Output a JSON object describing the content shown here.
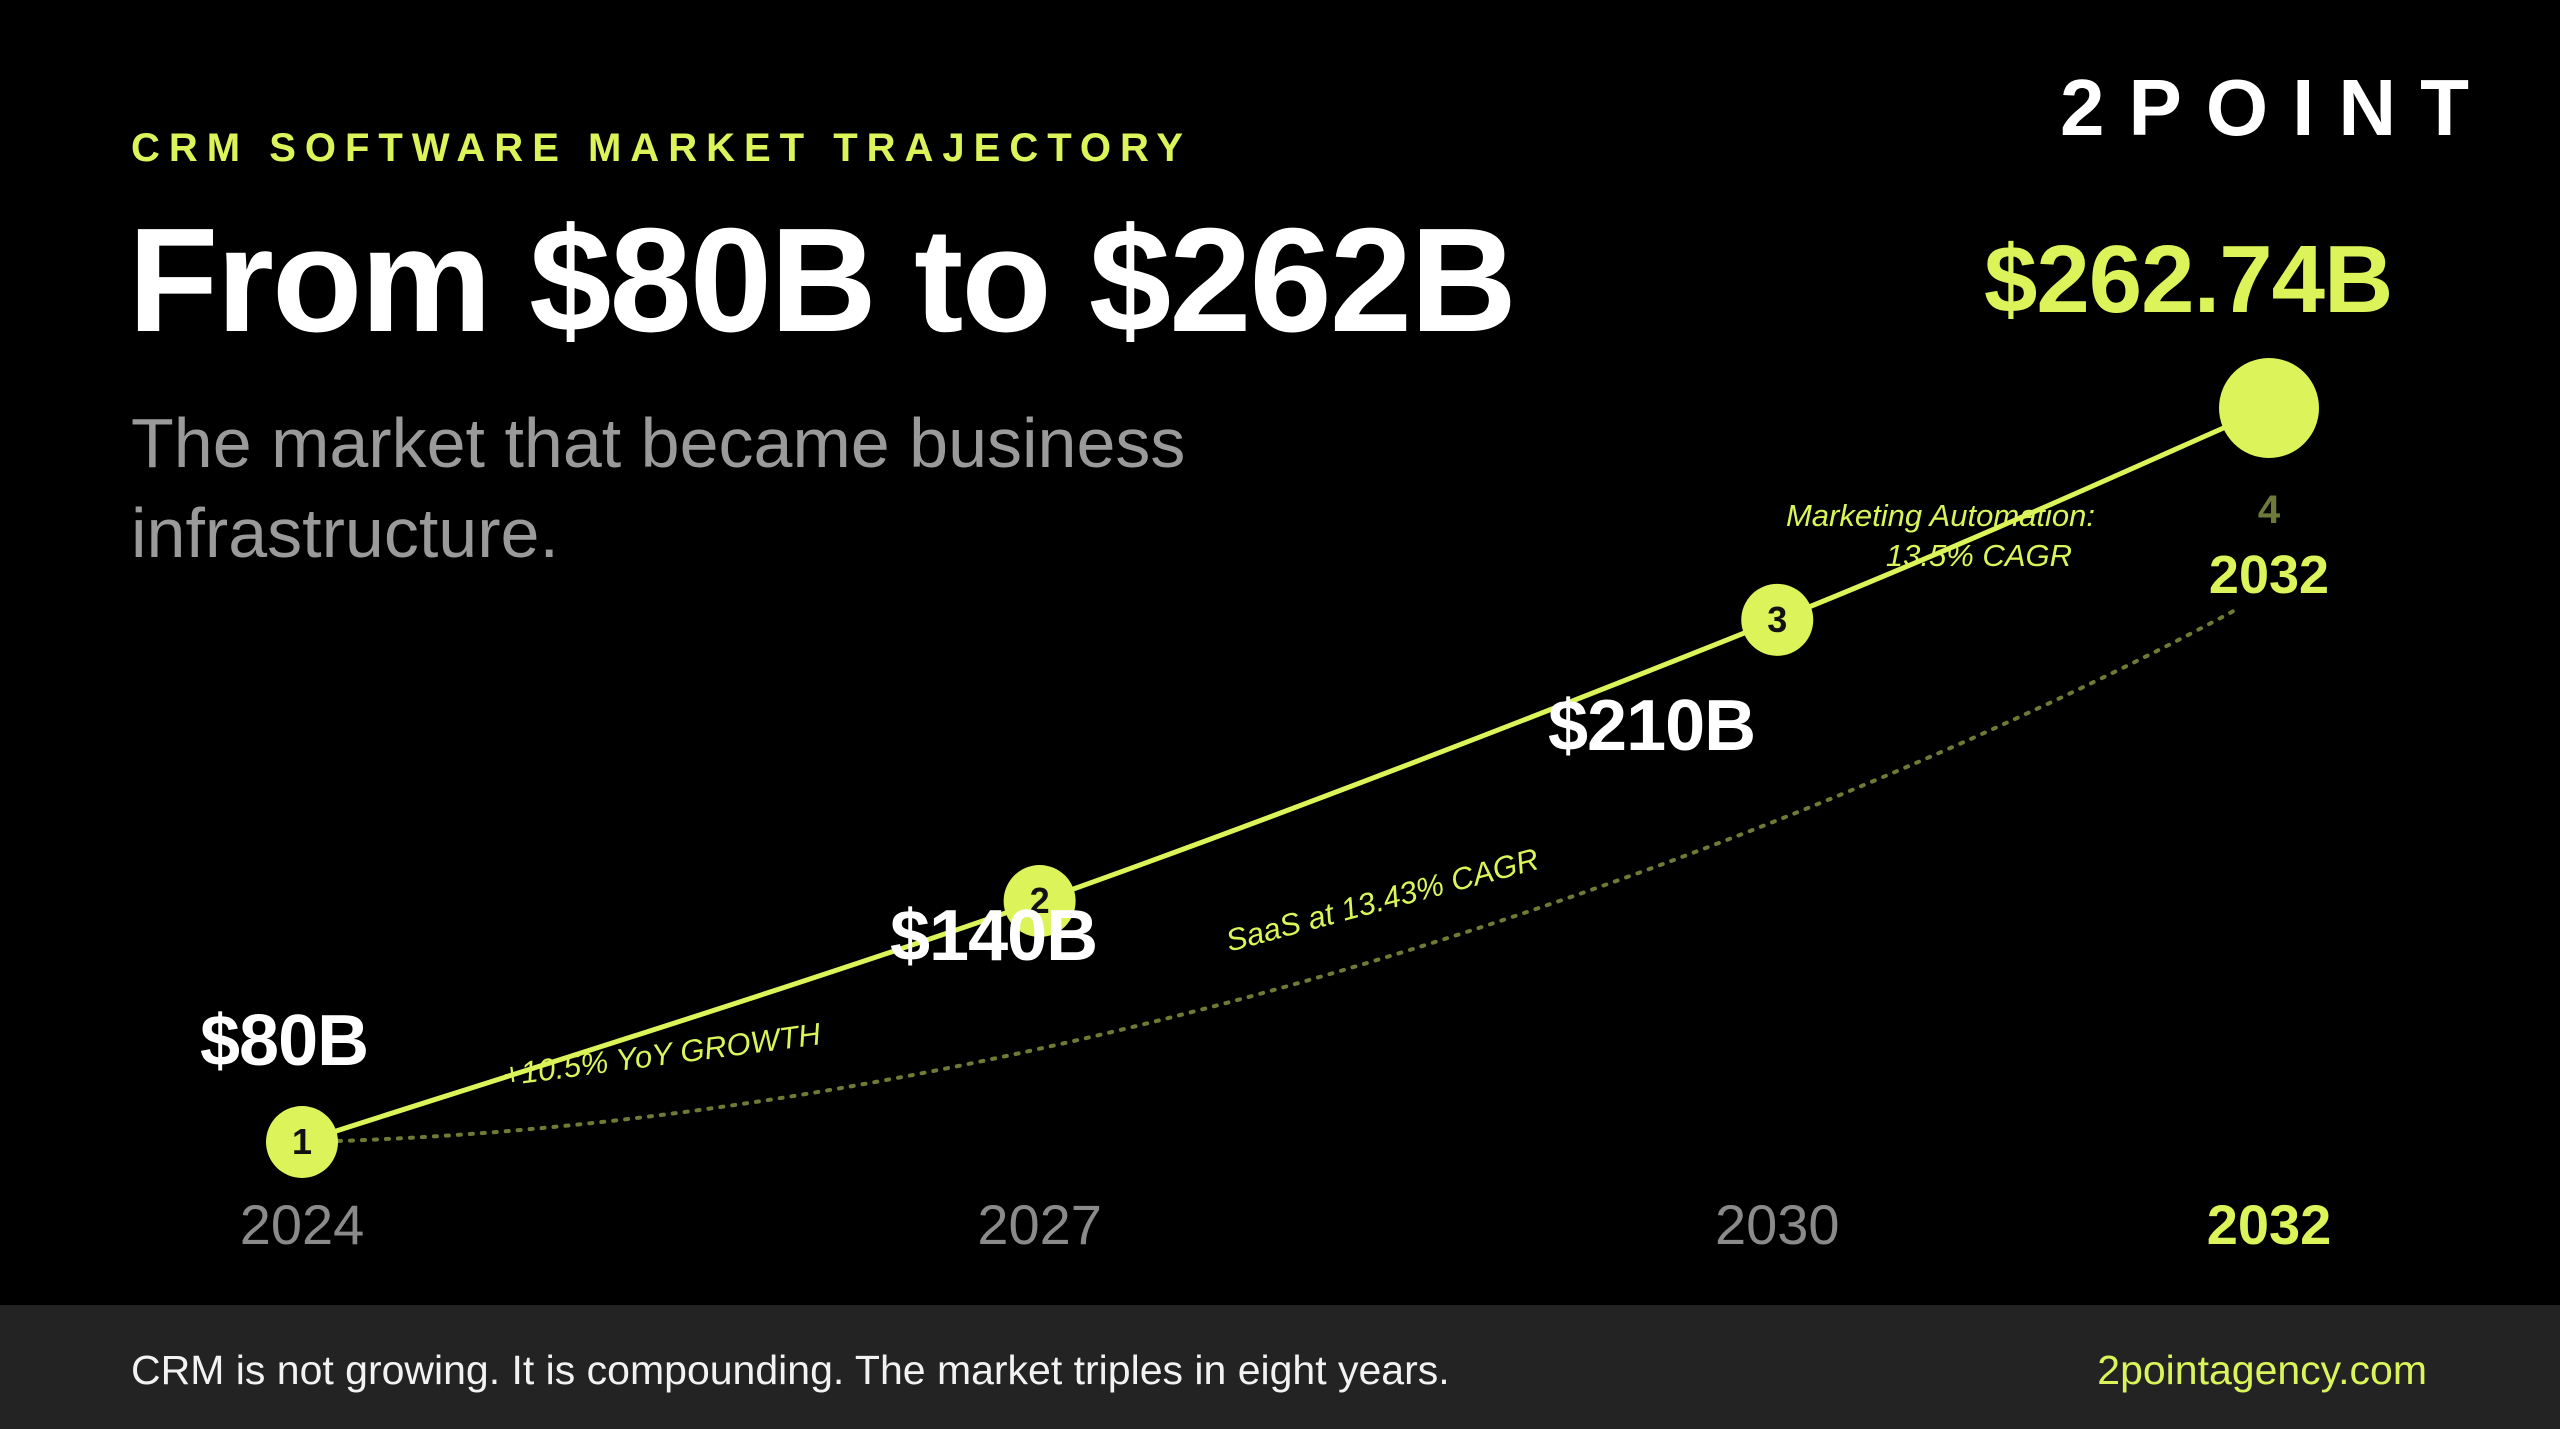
{
  "header": {
    "eyebrow": "CRM SOFTWARE MARKET TRAJECTORY",
    "logo": "2POINT",
    "title": "From $80B to $262B",
    "subtitle": "The market that became business infrastructure."
  },
  "chart_data": {
    "type": "line",
    "x": [
      2024,
      2027,
      2030,
      2032
    ],
    "x_tick_labels": [
      "2024",
      "2027",
      "2030",
      "2032"
    ],
    "series": [
      {
        "values": [
          80,
          140,
          210,
          262.74
        ],
        "value_labels": [
          "$80B",
          "$140B",
          "$210B",
          "$262.74B"
        ],
        "step_labels": [
          "1",
          "2",
          "3",
          "4"
        ]
      }
    ],
    "annotations": [
      {
        "text": "+10.5% YoY GROWTH",
        "between": [
          2024,
          2027
        ]
      },
      {
        "text": "SaaS at 13.43% CAGR",
        "between": [
          2027,
          2030
        ]
      },
      {
        "text": "Marketing Automation:",
        "between": [
          2030,
          2032
        ],
        "line": 1
      },
      {
        "text": "13.5% CAGR",
        "between": [
          2030,
          2032
        ],
        "line": 2
      }
    ],
    "endpoint_year_label": "2032",
    "has_dotted_trend_line": true,
    "grid": false,
    "colors": {
      "accent": "#dcf45a",
      "value_label": "#ffffff",
      "axis_label": "#8a8a8a",
      "background": "#000000"
    }
  },
  "footer": {
    "tagline": "CRM is not growing. It is compounding. The market triples in eight years.",
    "site": "2pointagency.com"
  }
}
